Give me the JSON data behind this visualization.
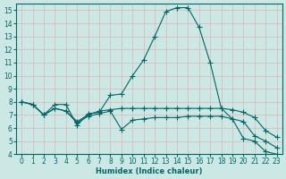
{
  "title": "",
  "xlabel": "Humidex (Indice chaleur)",
  "ylabel": "",
  "bg_color": "#cce8e4",
  "line_color": "#006666",
  "grid_color": "#ddbbbb",
  "series": [
    {
      "x": [
        0,
        1,
        2,
        3,
        4,
        5,
        6,
        7,
        8,
        9,
        10,
        11,
        12,
        13,
        14,
        15,
        16,
        17,
        18,
        19,
        20,
        21,
        22,
        23
      ],
      "y": [
        8.0,
        7.8,
        7.0,
        7.8,
        7.8,
        6.2,
        7.1,
        7.2,
        8.5,
        8.6,
        10.0,
        11.2,
        13.0,
        14.9,
        15.2,
        15.2,
        13.7,
        11.0,
        7.5,
        6.7,
        5.2,
        5.0,
        4.2,
        4.0
      ]
    },
    {
      "x": [
        0,
        1,
        2,
        3,
        4,
        5,
        6,
        7,
        8,
        9,
        10,
        11,
        12,
        13,
        14,
        15,
        16,
        17,
        18,
        19,
        20,
        21,
        22,
        23
      ],
      "y": [
        8.0,
        7.8,
        7.0,
        7.5,
        7.3,
        6.5,
        7.0,
        7.3,
        7.4,
        7.5,
        7.5,
        7.5,
        7.5,
        7.5,
        7.5,
        7.5,
        7.5,
        7.5,
        7.5,
        7.4,
        7.2,
        6.8,
        5.8,
        5.3
      ]
    },
    {
      "x": [
        0,
        1,
        2,
        3,
        4,
        5,
        6,
        7,
        8,
        9,
        10,
        11,
        12,
        13,
        14,
        15,
        16,
        17,
        18,
        19,
        20,
        21,
        22,
        23
      ],
      "y": [
        8.0,
        7.8,
        7.0,
        7.5,
        7.3,
        6.4,
        6.9,
        7.1,
        7.3,
        5.9,
        6.6,
        6.7,
        6.8,
        6.8,
        6.8,
        6.9,
        6.9,
        6.9,
        6.9,
        6.7,
        6.5,
        5.4,
        5.0,
        4.5
      ]
    }
  ],
  "xlim": [
    -0.5,
    23.5
  ],
  "ylim": [
    4,
    15.5
  ],
  "yticks": [
    4,
    5,
    6,
    7,
    8,
    9,
    10,
    11,
    12,
    13,
    14,
    15
  ],
  "xticks": [
    0,
    1,
    2,
    3,
    4,
    5,
    6,
    7,
    8,
    9,
    10,
    11,
    12,
    13,
    14,
    15,
    16,
    17,
    18,
    19,
    20,
    21,
    22,
    23
  ],
  "font_size": 5.5,
  "marker": "+",
  "marker_size": 4.0,
  "linewidth": 0.8
}
